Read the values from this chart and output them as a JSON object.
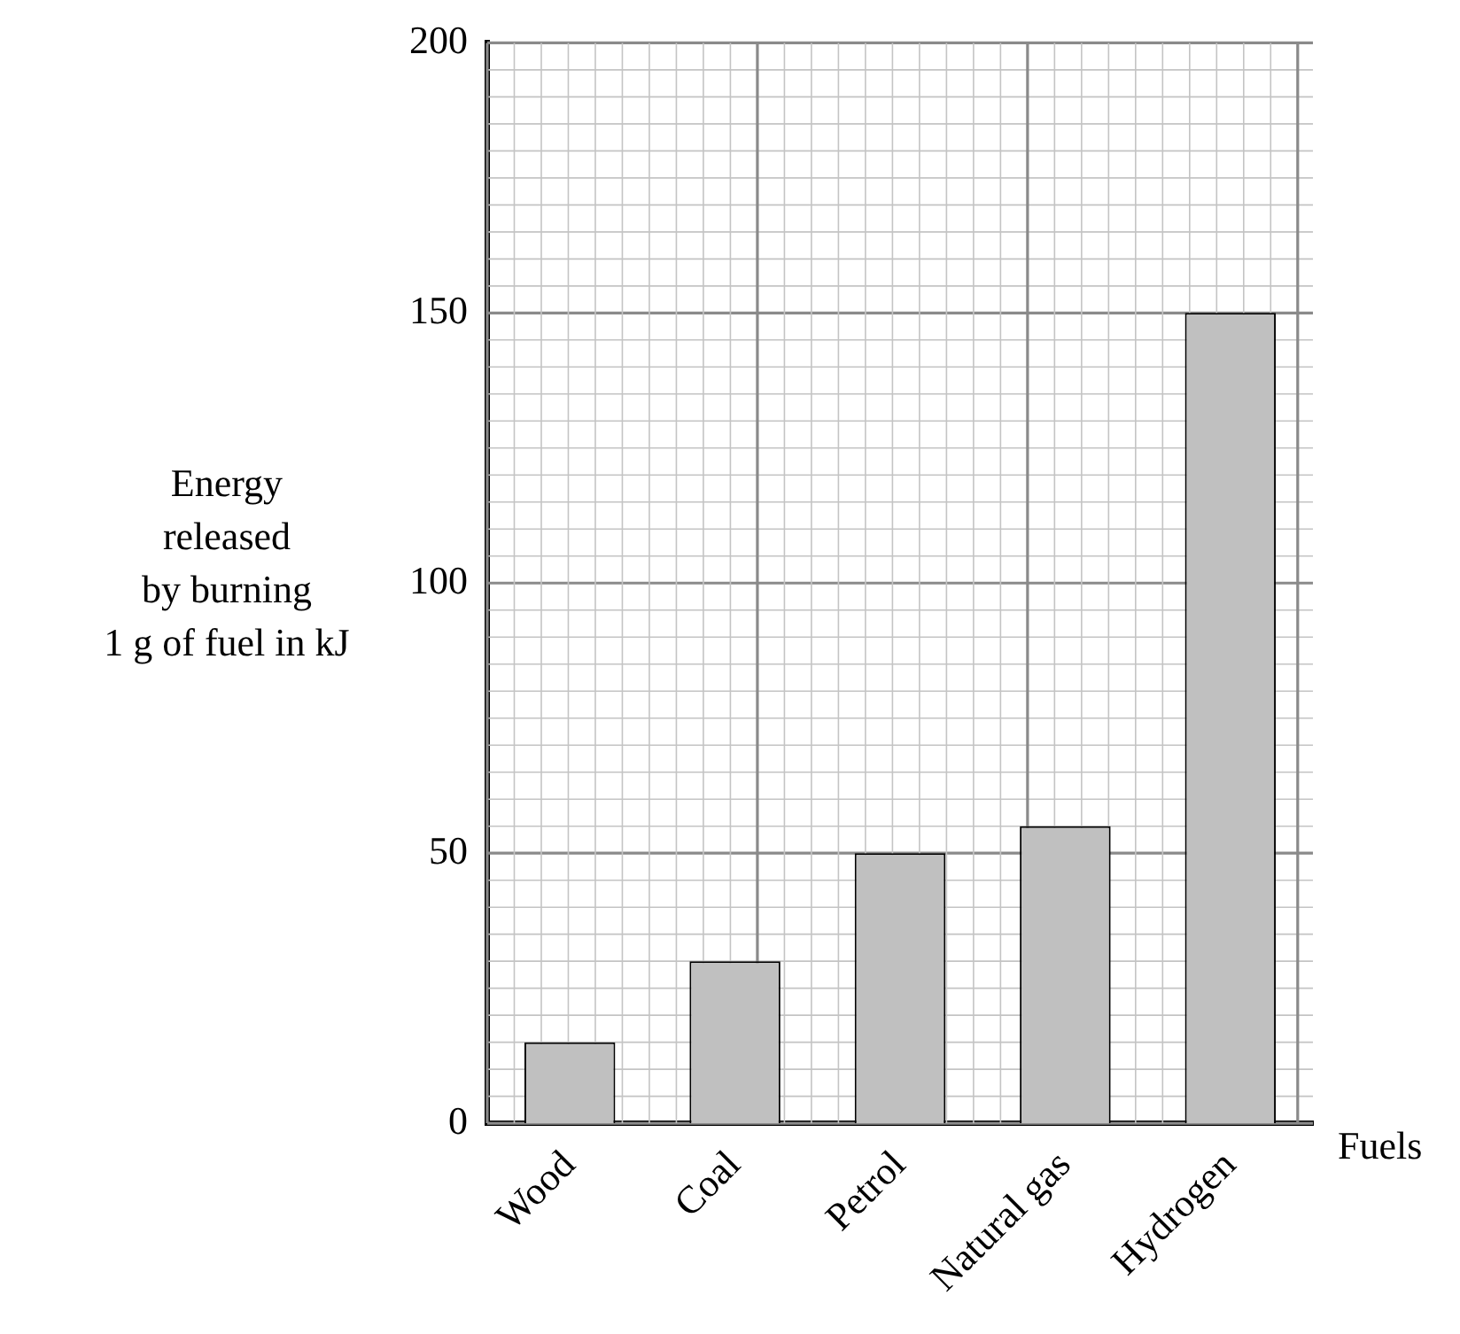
{
  "chart_data": {
    "type": "bar",
    "categories": [
      "Wood",
      "Coal",
      "Petrol",
      "Natural gas",
      "Hydrogen"
    ],
    "values": [
      15,
      30,
      50,
      55,
      150
    ],
    "color": "#c0c0c0",
    "xlabel": "Fuels",
    "ylabel": "Energy\nreleased\nby burning\n1 g of fuel in kJ",
    "ylim": [
      0,
      200
    ],
    "yticks": [
      0,
      50,
      100,
      150,
      200
    ],
    "grid": true,
    "legend": false
  }
}
